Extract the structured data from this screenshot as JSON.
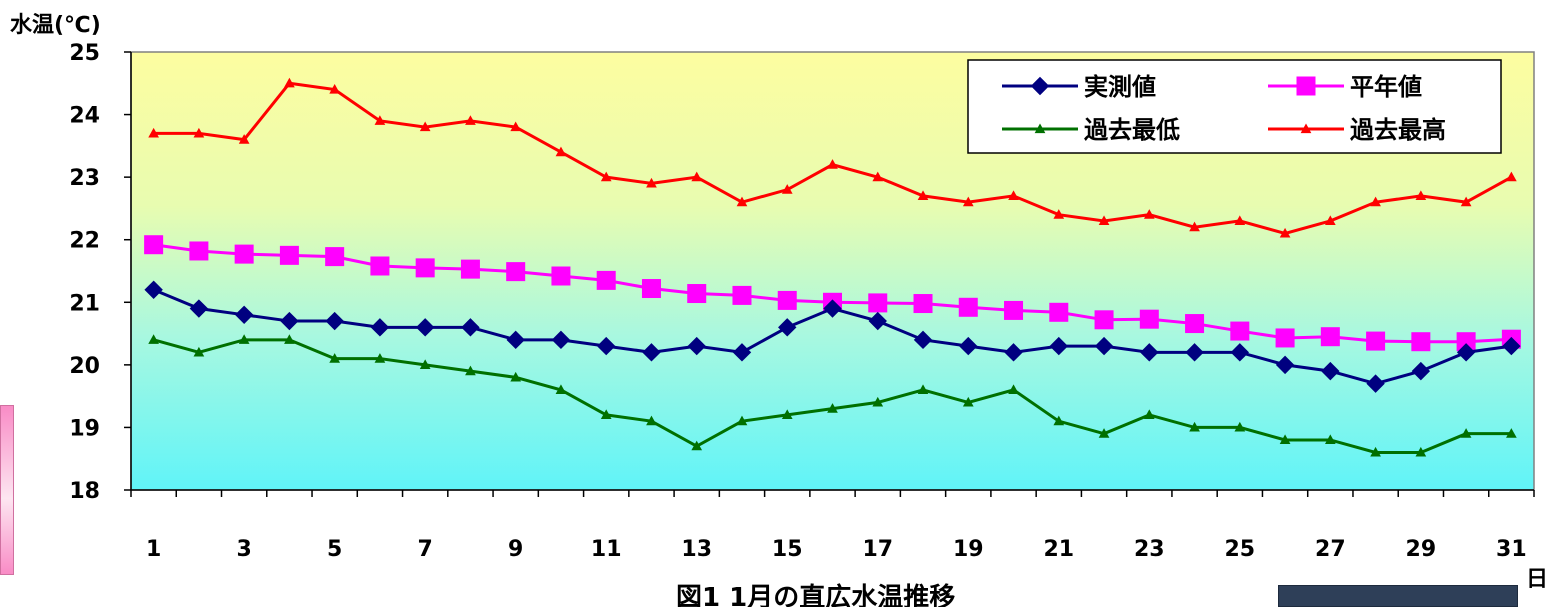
{
  "chart_data": {
    "type": "line",
    "ylabel": "水温(℃)",
    "xlabel": "日",
    "caption": "図1  1月の直広水温推移",
    "ylim": [
      18,
      25
    ],
    "yticks": [
      "18",
      "19",
      "20",
      "21",
      "22",
      "23",
      "24",
      "25"
    ],
    "x": [
      1,
      2,
      3,
      4,
      5,
      6,
      7,
      8,
      9,
      10,
      11,
      12,
      13,
      14,
      15,
      16,
      17,
      18,
      19,
      20,
      21,
      22,
      23,
      24,
      25,
      26,
      27,
      28,
      29,
      30,
      31
    ],
    "xtick_labels": [
      "1",
      "3",
      "5",
      "7",
      "9",
      "11",
      "13",
      "15",
      "17",
      "19",
      "21",
      "23",
      "25",
      "27",
      "29",
      "31"
    ],
    "grid": false,
    "legend_position": "top-right",
    "series": [
      {
        "name": "実測値",
        "color": "#000080",
        "marker": "diamond",
        "values": [
          21.2,
          20.9,
          20.8,
          20.7,
          20.7,
          20.6,
          20.6,
          20.6,
          20.4,
          20.4,
          20.3,
          20.2,
          20.3,
          20.2,
          20.6,
          20.9,
          20.7,
          20.4,
          20.3,
          20.2,
          20.3,
          20.3,
          20.2,
          20.2,
          20.2,
          20.0,
          19.9,
          19.7,
          19.9,
          20.2,
          20.3
        ]
      },
      {
        "name": "平年値",
        "color": "#ff00ff",
        "marker": "square",
        "values": [
          21.92,
          21.82,
          21.77,
          21.75,
          21.73,
          21.58,
          21.55,
          21.53,
          21.49,
          21.42,
          21.35,
          21.22,
          21.14,
          21.11,
          21.03,
          21.0,
          20.99,
          20.98,
          20.92,
          20.87,
          20.84,
          20.72,
          20.73,
          20.66,
          20.54,
          20.43,
          20.45,
          20.38,
          20.37,
          20.37,
          20.41
        ]
      },
      {
        "name": "過去最低",
        "color": "#007000",
        "marker": "triangle",
        "values": [
          20.4,
          20.2,
          20.4,
          20.4,
          20.1,
          20.1,
          20.0,
          19.9,
          19.8,
          19.6,
          19.2,
          19.1,
          18.7,
          19.1,
          19.2,
          19.3,
          19.4,
          19.6,
          19.4,
          19.6,
          19.1,
          18.9,
          19.2,
          19.0,
          19.0,
          18.8,
          18.8,
          18.6,
          18.6,
          18.9,
          18.9
        ]
      },
      {
        "name": "過去最高",
        "color": "#ff0000",
        "marker": "triangle",
        "values": [
          23.7,
          23.7,
          23.6,
          24.5,
          24.4,
          23.9,
          23.8,
          23.9,
          23.8,
          23.4,
          23.0,
          22.9,
          23.0,
          22.6,
          22.8,
          23.2,
          23.0,
          22.7,
          22.6,
          22.7,
          22.4,
          22.3,
          22.4,
          22.2,
          22.3,
          22.1,
          22.3,
          22.6,
          22.7,
          22.6,
          23.0
        ]
      }
    ]
  }
}
